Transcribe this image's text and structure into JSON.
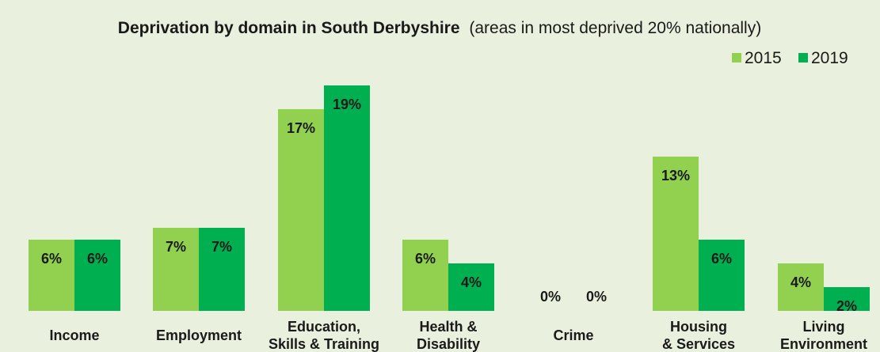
{
  "title": {
    "bold": "Deprivation by domain in South Derbyshire",
    "rest": "(areas in most deprived 20% nationally)"
  },
  "colors": {
    "s2015": "#92d050",
    "s2019": "#00b050",
    "background": "#e9f0de"
  },
  "chart_data": {
    "type": "bar",
    "title": "Deprivation by domain in South Derbyshire (areas in most deprived 20% nationally)",
    "xlabel": "",
    "ylabel": "",
    "ylim": [
      0,
      20
    ],
    "grid": false,
    "legend_position": "top-right",
    "categories": [
      [
        "Income"
      ],
      [
        "Employment"
      ],
      [
        "Education,",
        "Skills & Training"
      ],
      [
        "Health &",
        "Disability"
      ],
      [
        "Crime"
      ],
      [
        "Housing",
        "& Services"
      ],
      [
        "Living",
        "Environment"
      ]
    ],
    "series": [
      {
        "name": "2015",
        "color": "#92d050",
        "values": [
          6,
          7,
          17,
          6,
          0,
          13,
          4
        ],
        "labels": [
          "6%",
          "7%",
          "17%",
          "6%",
          "0%",
          "13%",
          "4%"
        ]
      },
      {
        "name": "2019",
        "color": "#00b050",
        "values": [
          6,
          7,
          19,
          4,
          0,
          6,
          2
        ],
        "labels": [
          "6%",
          "7%",
          "19%",
          "4%",
          "0%",
          "6%",
          "2%"
        ]
      }
    ]
  }
}
